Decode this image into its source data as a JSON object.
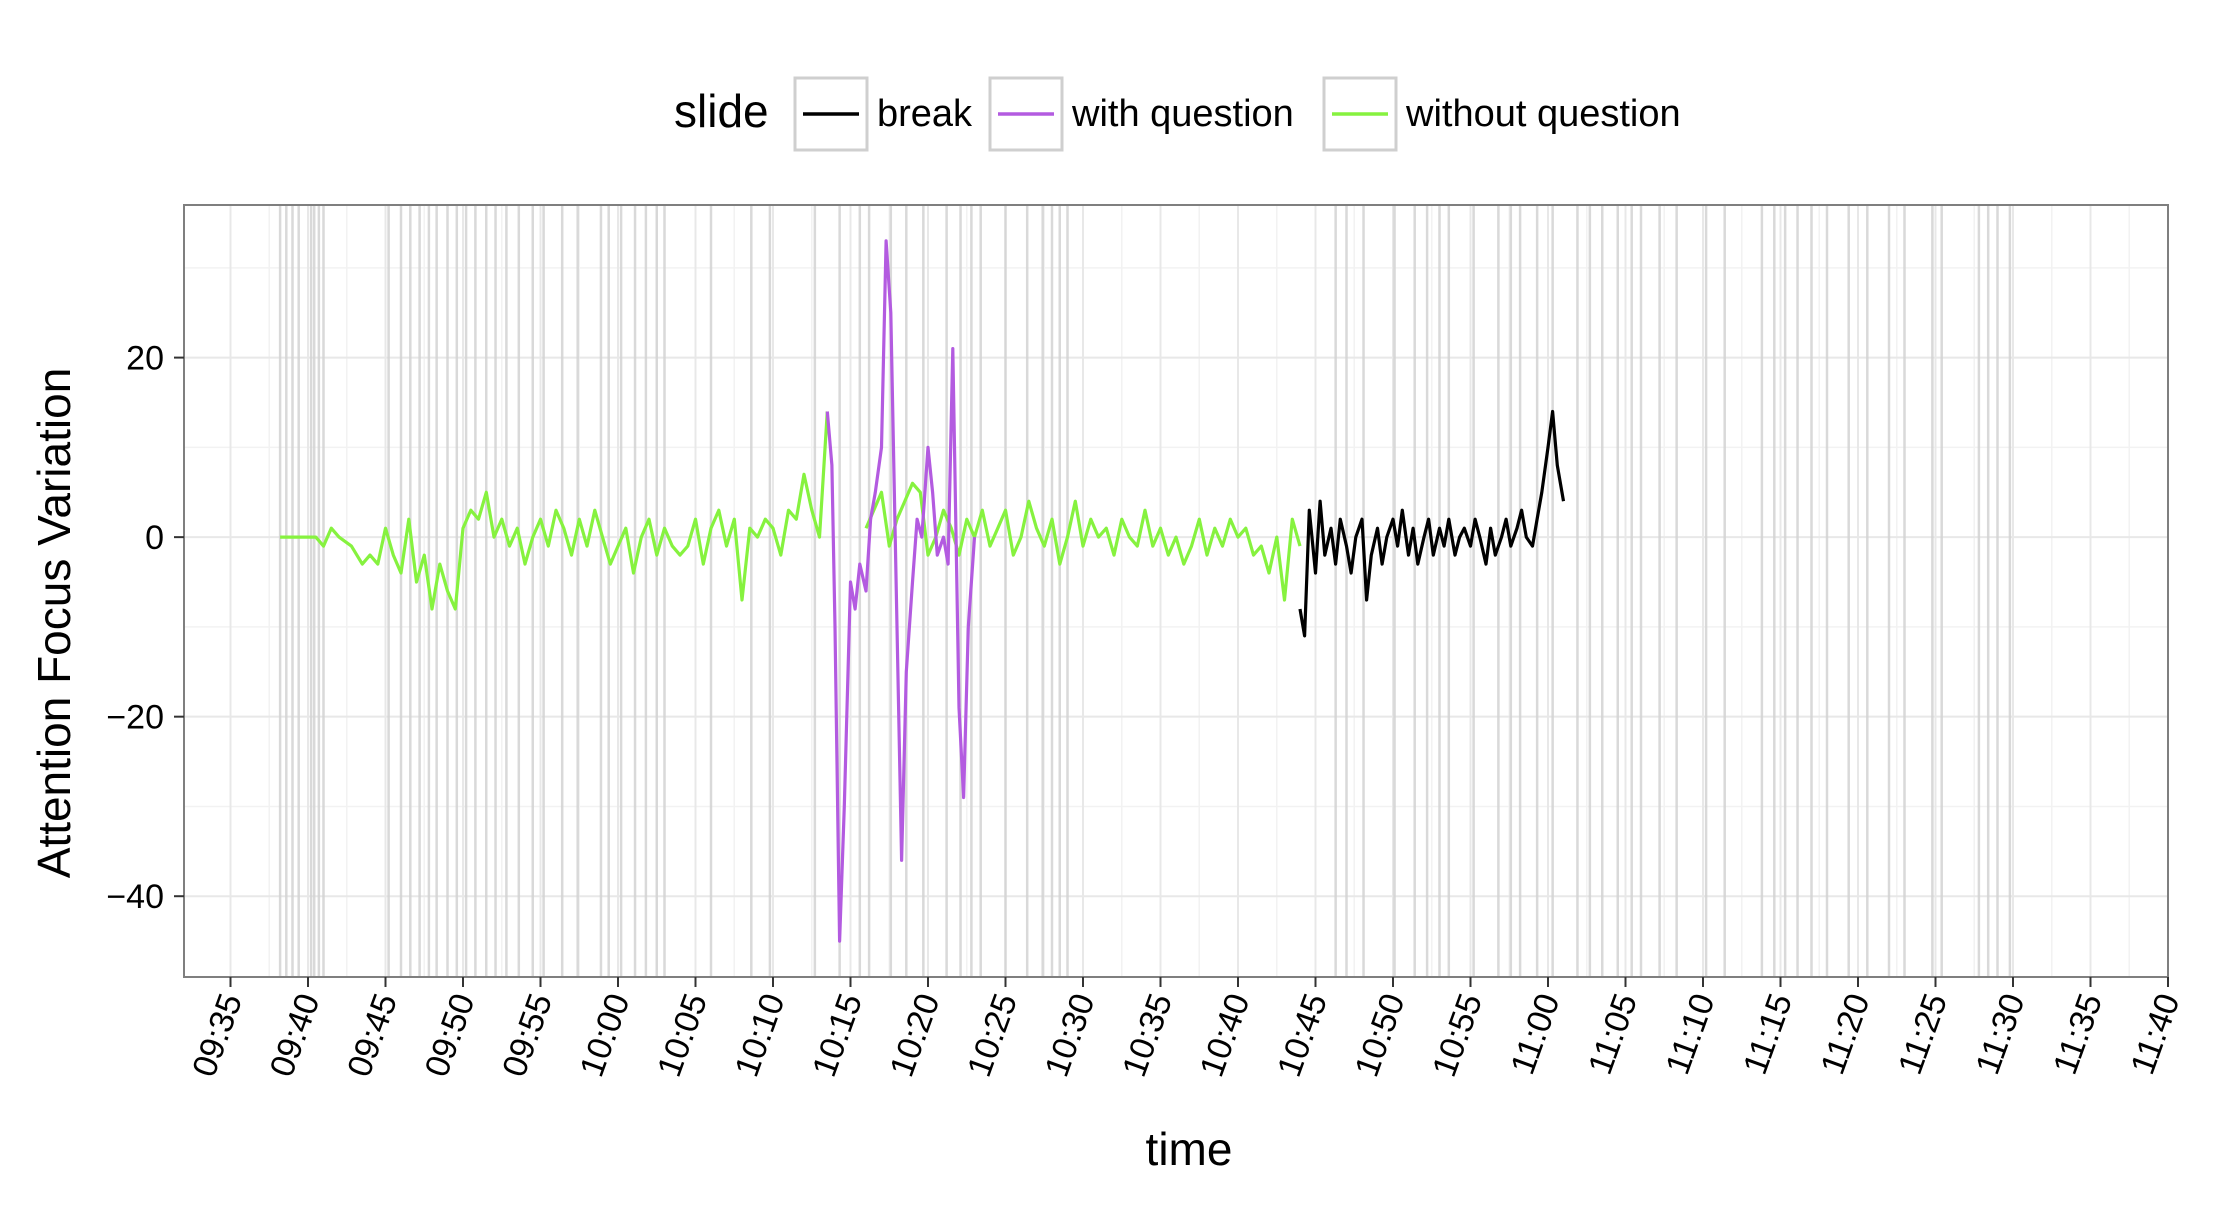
{
  "chart_data": {
    "type": "line",
    "title": "",
    "xlabel": "time",
    "ylabel": "Attention Focus Variation",
    "xlim": [
      "09:32",
      "11:40"
    ],
    "ylim": [
      -49,
      37
    ],
    "x_ticks": [
      "09:35",
      "09:40",
      "09:45",
      "09:50",
      "09:55",
      "10:00",
      "10:05",
      "10:10",
      "10:15",
      "10:20",
      "10:25",
      "10:30",
      "10:35",
      "10:40",
      "10:45",
      "10:50",
      "10:55",
      "11:00",
      "11:05",
      "11:10",
      "11:15",
      "11:20",
      "11:25",
      "11:30",
      "11:35",
      "11:40"
    ],
    "y_ticks": [
      20,
      0,
      -20,
      -40
    ],
    "grid": true,
    "legend": {
      "title": "slide",
      "position": "top",
      "entries": [
        {
          "label": "break",
          "color": "#000000"
        },
        {
          "label": "with question",
          "color": "#b35be0"
        },
        {
          "label": "without question",
          "color": "#86f23f"
        }
      ]
    },
    "slide_change_markers": [
      "09:38.2",
      "09:38.6",
      "09:39.0",
      "09:39.4",
      "09:40.2",
      "09:40.4",
      "09:40.7",
      "09:41.0",
      "09:45.2",
      "09:46.0",
      "09:46.6",
      "09:47.2",
      "09:47.8",
      "09:48.3",
      "09:49.0",
      "09:49.6",
      "09:50.2",
      "09:50.8",
      "09:51.5",
      "09:52.1",
      "09:52.8",
      "09:53.6",
      "09:54.5",
      "09:55.2",
      "09:56.4",
      "09:57.4",
      "09:58.9",
      "09:59.4",
      "10:00.2",
      "10:01.1",
      "10:01.8",
      "10:02.5",
      "10:03.0",
      "10:06.0",
      "10:08.6",
      "10:09.8",
      "10:12.7",
      "10:14.3",
      "10:15.6",
      "10:16.2",
      "10:17.6",
      "10:18.6",
      "10:19.7",
      "10:21.2",
      "10:22.1",
      "10:22.8",
      "10:23.4",
      "10:25.0",
      "10:26.4",
      "10:27.4",
      "10:28.0",
      "10:28.5",
      "10:29.0",
      "10:46.3",
      "10:47.0",
      "10:48.1",
      "10:50.1",
      "10:51.4",
      "10:52.2",
      "10:53.0",
      "10:53.6",
      "10:55.2",
      "10:56.8",
      "10:57.6",
      "10:58.2",
      "10:59.3",
      "11:00.3",
      "11:01.9",
      "11:02.7",
      "11:03.5",
      "11:04.5",
      "11:05.4",
      "11:06.0",
      "11:07.2",
      "11:08.3",
      "11:10.2",
      "11:11.4",
      "11:13.8",
      "11:14.6",
      "11:15.3",
      "11:16.1",
      "11:17.0",
      "11:18.0",
      "11:19.4",
      "11:20.6",
      "11:22.0",
      "11:23.0",
      "11:24.8",
      "11:25.4",
      "11:27.8",
      "11:28.4",
      "11:29.0",
      "11:29.8"
    ],
    "series": [
      {
        "name": "without question",
        "color": "#86f23f",
        "segments": [
          [
            [
              "09:38.2",
              0
            ],
            [
              "09:40.5",
              0
            ],
            [
              "09:41.0",
              -1
            ],
            [
              "09:41.5",
              1
            ],
            [
              "09:42.0",
              0
            ],
            [
              "09:42.8",
              -1
            ],
            [
              "09:43.5",
              -3
            ],
            [
              "09:44.0",
              -2
            ],
            [
              "09:44.5",
              -3
            ],
            [
              "09:45.0",
              1
            ],
            [
              "09:45.5",
              -2
            ],
            [
              "09:46.0",
              -4
            ],
            [
              "09:46.5",
              2
            ],
            [
              "09:47.0",
              -5
            ],
            [
              "09:47.5",
              -2
            ],
            [
              "09:48.0",
              -8
            ],
            [
              "09:48.5",
              -3
            ],
            [
              "09:49.0",
              -6
            ],
            [
              "09:49.5",
              -8
            ],
            [
              "09:50.0",
              1
            ],
            [
              "09:50.5",
              3
            ],
            [
              "09:51.0",
              2
            ],
            [
              "09:51.5",
              5
            ],
            [
              "09:52.0",
              0
            ],
            [
              "09:52.5",
              2
            ],
            [
              "09:53.0",
              -1
            ],
            [
              "09:53.5",
              1
            ],
            [
              "09:54.0",
              -3
            ],
            [
              "09:54.5",
              0
            ],
            [
              "09:55.0",
              2
            ],
            [
              "09:55.5",
              -1
            ],
            [
              "09:56.0",
              3
            ],
            [
              "09:56.5",
              1
            ],
            [
              "09:57.0",
              -2
            ],
            [
              "09:57.5",
              2
            ],
            [
              "09:58.0",
              -1
            ],
            [
              "09:58.5",
              3
            ],
            [
              "09:59.0",
              0
            ],
            [
              "09:59.5",
              -3
            ],
            [
              "10:00.0",
              -1
            ],
            [
              "10:00.5",
              1
            ],
            [
              "10:01.0",
              -4
            ],
            [
              "10:01.5",
              0
            ],
            [
              "10:02.0",
              2
            ],
            [
              "10:02.5",
              -2
            ],
            [
              "10:03.0",
              1
            ],
            [
              "10:03.5",
              -1
            ],
            [
              "10:04.0",
              -2
            ],
            [
              "10:04.5",
              -1
            ],
            [
              "10:05.0",
              2
            ],
            [
              "10:05.5",
              -3
            ],
            [
              "10:06.0",
              1
            ],
            [
              "10:06.5",
              3
            ],
            [
              "10:07.0",
              -1
            ],
            [
              "10:07.5",
              2
            ],
            [
              "10:08.0",
              -7
            ],
            [
              "10:08.5",
              1
            ],
            [
              "10:09.0",
              0
            ],
            [
              "10:09.5",
              2
            ],
            [
              "10:10.0",
              1
            ],
            [
              "10:10.5",
              -2
            ],
            [
              "10:11.0",
              3
            ],
            [
              "10:11.5",
              2
            ],
            [
              "10:12.0",
              7
            ],
            [
              "10:12.5",
              3
            ],
            [
              "10:13.0",
              0
            ],
            [
              "10:13.5",
              14
            ]
          ],
          [
            [
              "10:16.0",
              1
            ],
            [
              "10:16.5",
              3
            ],
            [
              "10:17.0",
              5
            ],
            [
              "10:17.5",
              -1
            ],
            [
              "10:18.0",
              2
            ],
            [
              "10:18.5",
              4
            ],
            [
              "10:19.0",
              6
            ],
            [
              "10:19.5",
              5
            ],
            [
              "10:20.0",
              -2
            ],
            [
              "10:20.5",
              0
            ],
            [
              "10:21.0",
              3
            ],
            [
              "10:21.5",
              1
            ],
            [
              "10:22.0",
              -2
            ],
            [
              "10:22.5",
              2
            ],
            [
              "10:23.0",
              0
            ],
            [
              "10:23.5",
              3
            ],
            [
              "10:24.0",
              -1
            ],
            [
              "10:24.5",
              1
            ],
            [
              "10:25.0",
              3
            ],
            [
              "10:25.5",
              -2
            ],
            [
              "10:26.0",
              0
            ],
            [
              "10:26.5",
              4
            ],
            [
              "10:27.0",
              1
            ],
            [
              "10:27.5",
              -1
            ],
            [
              "10:28.0",
              2
            ],
            [
              "10:28.5",
              -3
            ],
            [
              "10:29.0",
              0
            ],
            [
              "10:29.5",
              4
            ],
            [
              "10:30.0",
              -1
            ],
            [
              "10:30.5",
              2
            ],
            [
              "10:31.0",
              0
            ],
            [
              "10:31.5",
              1
            ],
            [
              "10:32.0",
              -2
            ],
            [
              "10:32.5",
              2
            ],
            [
              "10:33.0",
              0
            ],
            [
              "10:33.5",
              -1
            ],
            [
              "10:34.0",
              3
            ],
            [
              "10:34.5",
              -1
            ],
            [
              "10:35.0",
              1
            ],
            [
              "10:35.5",
              -2
            ],
            [
              "10:36.0",
              0
            ],
            [
              "10:36.5",
              -3
            ],
            [
              "10:37.0",
              -1
            ],
            [
              "10:37.5",
              2
            ],
            [
              "10:38.0",
              -2
            ],
            [
              "10:38.5",
              1
            ],
            [
              "10:39.0",
              -1
            ],
            [
              "10:39.5",
              2
            ],
            [
              "10:40.0",
              0
            ],
            [
              "10:40.5",
              1
            ],
            [
              "10:41.0",
              -2
            ],
            [
              "10:41.5",
              -1
            ],
            [
              "10:42.0",
              -4
            ],
            [
              "10:42.5",
              0
            ],
            [
              "10:43.0",
              -7
            ],
            [
              "10:43.5",
              2
            ],
            [
              "10:44.0",
              -1
            ]
          ]
        ]
      },
      {
        "name": "with question",
        "color": "#b35be0",
        "segments": [
          [
            [
              "10:13.5",
              14
            ],
            [
              "10:13.8",
              8
            ],
            [
              "10:14.0",
              -10
            ],
            [
              "10:14.3",
              -45
            ],
            [
              "10:14.6",
              -30
            ],
            [
              "10:15.0",
              -5
            ],
            [
              "10:15.3",
              -8
            ],
            [
              "10:15.6",
              -3
            ],
            [
              "10:16.0",
              -6
            ],
            [
              "10:16.3",
              2
            ],
            [
              "10:16.6",
              5
            ],
            [
              "10:17.0",
              10
            ],
            [
              "10:17.3",
              33
            ],
            [
              "10:17.6",
              25
            ],
            [
              "10:18.0",
              -10
            ],
            [
              "10:18.3",
              -36
            ],
            [
              "10:18.6",
              -15
            ],
            [
              "10:19.0",
              -5
            ],
            [
              "10:19.3",
              2
            ],
            [
              "10:19.6",
              0
            ],
            [
              "10:20.0",
              10
            ],
            [
              "10:20.3",
              5
            ],
            [
              "10:20.6",
              -2
            ],
            [
              "10:21.0",
              0
            ],
            [
              "10:21.3",
              -3
            ],
            [
              "10:21.6",
              21
            ],
            [
              "10:22.0",
              -19
            ],
            [
              "10:22.3",
              -29
            ],
            [
              "10:22.6",
              -10
            ],
            [
              "10:23.0",
              0
            ]
          ]
        ]
      },
      {
        "name": "break",
        "color": "#000000",
        "segments": [
          [
            [
              "10:44.0",
              -8
            ],
            [
              "10:44.3",
              -11
            ],
            [
              "10:44.6",
              3
            ],
            [
              "10:45.0",
              -4
            ],
            [
              "10:45.3",
              4
            ],
            [
              "10:45.6",
              -2
            ],
            [
              "10:46.0",
              1
            ],
            [
              "10:46.3",
              -3
            ],
            [
              "10:46.6",
              2
            ],
            [
              "10:47.0",
              -1
            ],
            [
              "10:47.3",
              -4
            ],
            [
              "10:47.6",
              0
            ],
            [
              "10:48.0",
              2
            ],
            [
              "10:48.3",
              -7
            ],
            [
              "10:48.6",
              -2
            ],
            [
              "10:49.0",
              1
            ],
            [
              "10:49.3",
              -3
            ],
            [
              "10:49.6",
              0
            ],
            [
              "10:50.0",
              2
            ],
            [
              "10:50.3",
              -1
            ],
            [
              "10:50.6",
              3
            ],
            [
              "10:51.0",
              -2
            ],
            [
              "10:51.3",
              1
            ],
            [
              "10:51.6",
              -3
            ],
            [
              "10:52.0",
              0
            ],
            [
              "10:52.3",
              2
            ],
            [
              "10:52.6",
              -2
            ],
            [
              "10:53.0",
              1
            ],
            [
              "10:53.3",
              -1
            ],
            [
              "10:53.6",
              2
            ],
            [
              "10:54.0",
              -2
            ],
            [
              "10:54.3",
              0
            ],
            [
              "10:54.6",
              1
            ],
            [
              "10:55.0",
              -1
            ],
            [
              "10:55.3",
              2
            ],
            [
              "10:55.6",
              0
            ],
            [
              "10:56.0",
              -3
            ],
            [
              "10:56.3",
              1
            ],
            [
              "10:56.6",
              -2
            ],
            [
              "10:57.0",
              0
            ],
            [
              "10:57.3",
              2
            ],
            [
              "10:57.6",
              -1
            ],
            [
              "10:58.0",
              1
            ],
            [
              "10:58.3",
              3
            ],
            [
              "10:58.6",
              0
            ],
            [
              "10:59.0",
              -1
            ],
            [
              "10:59.3",
              2
            ],
            [
              "10:59.6",
              5
            ],
            [
              "11:00.0",
              10
            ],
            [
              "11:00.3",
              14
            ],
            [
              "11:00.6",
              8
            ],
            [
              "11:01.0",
              4
            ]
          ]
        ]
      }
    ]
  }
}
